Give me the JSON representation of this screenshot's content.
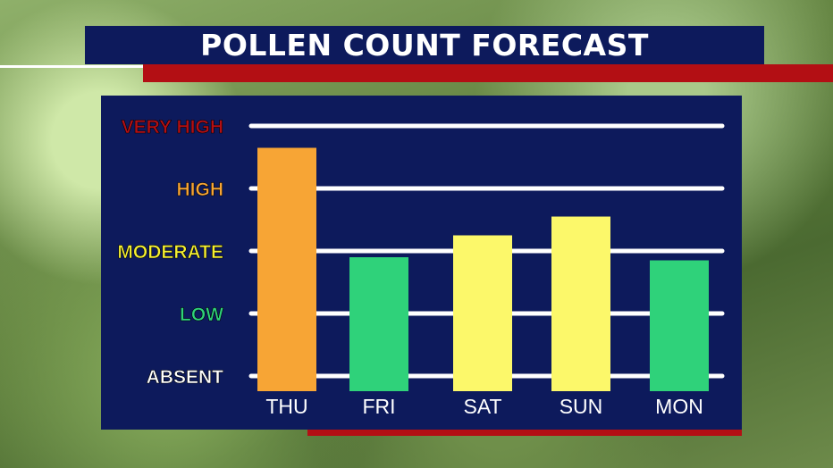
{
  "title": "POLLEN COUNT FORECAST",
  "colors": {
    "navy": "#0d1a5c",
    "accent_red": "#b30f14",
    "gridline": "#ffffff"
  },
  "chart_data": {
    "type": "bar",
    "title": "POLLEN COUNT FORECAST",
    "categories": [
      "THU",
      "FRI",
      "SAT",
      "SUN",
      "MON"
    ],
    "values": [
      3.65,
      1.9,
      2.25,
      2.55,
      1.85
    ],
    "bar_colors": [
      "#f7a535",
      "#2fd27a",
      "#fcf86a",
      "#fcf86a",
      "#2fd27a"
    ],
    "ylim": [
      0,
      4
    ],
    "grid": true,
    "y_levels": [
      {
        "label": "ABSENT",
        "value": 0,
        "color": "#ffffff"
      },
      {
        "label": "LOW",
        "value": 1,
        "color": "#2fd27a"
      },
      {
        "label": "MODERATE",
        "value": 2,
        "color": "#f5f032"
      },
      {
        "label": "HIGH",
        "value": 3,
        "color": "#f7a535"
      },
      {
        "label": "VERY HIGH",
        "value": 4,
        "color": "#b30f14"
      }
    ]
  }
}
